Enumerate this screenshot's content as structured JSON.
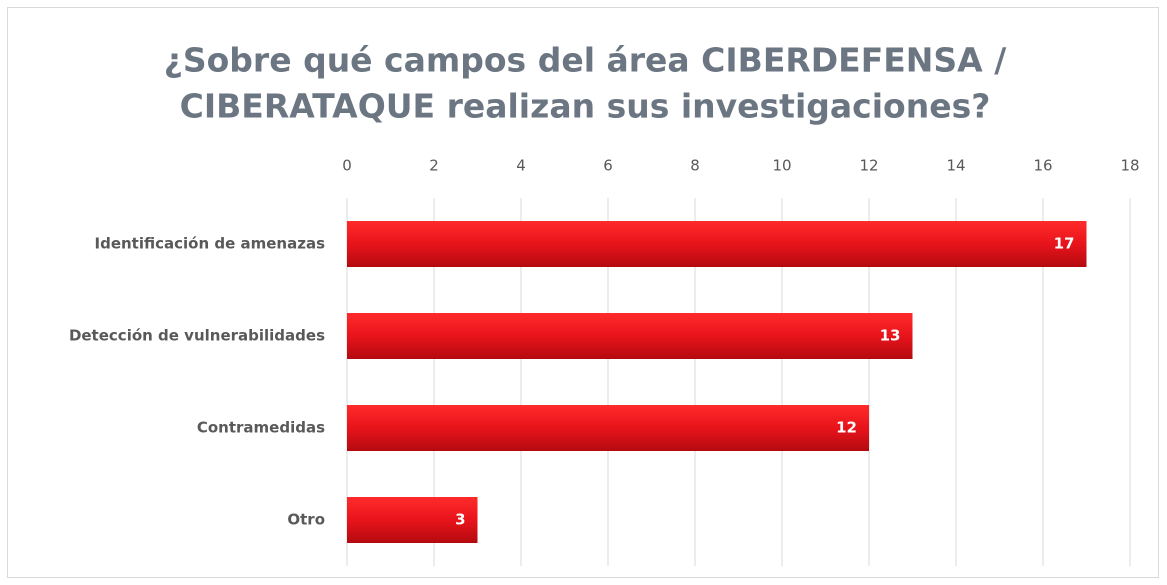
{
  "chart_data": {
    "type": "barh",
    "title": [
      "¿Sobre qué campos del área CIBERDEFENSA /",
      "CIBERATAQUE realizan sus investigaciones?"
    ],
    "categories": [
      "Identificación de amenazas",
      "Detección de vulnerabilidades",
      "Contramedidas",
      "Otro"
    ],
    "values": [
      17,
      13,
      12,
      3
    ],
    "color": "#e8141b",
    "xlim": [
      0,
      18
    ],
    "xticks": [
      0,
      2,
      4,
      6,
      8,
      10,
      12,
      14,
      16,
      18
    ],
    "grid": true
  }
}
